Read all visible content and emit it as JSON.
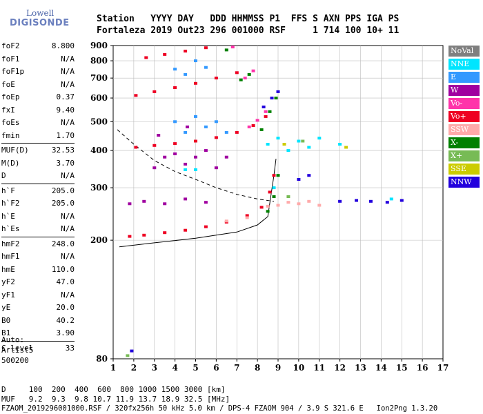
{
  "logo": {
    "brand": "Lowell",
    "name": "DIGISONDE"
  },
  "header": {
    "labels": "Station   YYYY DAY   DDD HHMMSS P1  FFS S AXN PPS IGA PS",
    "values": "Fortaleza 2019 Out23 296 001000 RSF     1 714 100 10+ 11"
  },
  "params": {
    "group1": [
      {
        "name": "foF2",
        "value": "8.800"
      },
      {
        "name": "foF1",
        "value": "N/A"
      },
      {
        "name": "foF1p",
        "value": "N/A"
      },
      {
        "name": "foE",
        "value": "N/A"
      },
      {
        "name": "foEp",
        "value": "0.37"
      },
      {
        "name": "fxI",
        "value": "9.40"
      },
      {
        "name": "foEs",
        "value": "N/A"
      },
      {
        "name": "fmin",
        "value": "1.70"
      }
    ],
    "group2": [
      {
        "name": "MUF(D)",
        "value": "32.53"
      },
      {
        "name": "M(D)",
        "value": "3.70"
      },
      {
        "name": "D",
        "value": "N/A"
      }
    ],
    "group3": [
      {
        "name": "h`F",
        "value": "205.0"
      },
      {
        "name": "h`F2",
        "value": "205.0"
      },
      {
        "name": "h`E",
        "value": "N/A"
      },
      {
        "name": "h`Es",
        "value": "N/A"
      }
    ],
    "group4": [
      {
        "name": "hmF2",
        "value": "248.0"
      },
      {
        "name": "hmF1",
        "value": "N/A"
      },
      {
        "name": "hmE",
        "value": "110.0"
      },
      {
        "name": "yF2",
        "value": "47.0"
      },
      {
        "name": "yF1",
        "value": "N/A"
      },
      {
        "name": "yE",
        "value": "20.0"
      },
      {
        "name": "B0",
        "value": "40.2"
      },
      {
        "name": "B1",
        "value": "3.90"
      }
    ],
    "group5": [
      {
        "name": "C-level",
        "value": "33"
      }
    ]
  },
  "auto": {
    "line1": "Auto:",
    "line2": "Artist5",
    "line3": "500200"
  },
  "footer": {
    "d_line": "D     100  200  400  600  800 1000 1500 3000 [km]",
    "muf_line": "MUF   9.2  9.3  9.8 10.7 11.9 13.7 18.9 32.5 [MHz]",
    "file_line": "FZAOM_2019296001000.RSF / 320fx256h 50 kHz 5.0 km / DPS-4 FZAOM 904 / 3.9 S 321.6 E   Ion2Png 1.3.20"
  },
  "legend": [
    {
      "label": "NoVal",
      "color": "#7f7f7f"
    },
    {
      "label": "NNE",
      "color": "#00e5ff"
    },
    {
      "label": "E",
      "color": "#3399ff"
    },
    {
      "label": "W",
      "color": "#a000a0"
    },
    {
      "label": "Vo-",
      "color": "#ff33aa"
    },
    {
      "label": "Vo+",
      "color": "#ee0022"
    },
    {
      "label": "SSW",
      "color": "#ffaaaa"
    },
    {
      "label": "X-",
      "color": "#008000"
    },
    {
      "label": "X+",
      "color": "#77bb55"
    },
    {
      "label": "SSE",
      "color": "#cccc00"
    },
    {
      "label": "NNW",
      "color": "#2200dd"
    }
  ],
  "chart_data": {
    "type": "scatter",
    "xlim": [
      1,
      17
    ],
    "ylim": [
      80,
      900
    ],
    "y_scale": "log",
    "x_ticks": [
      "1",
      "2",
      "3",
      "4",
      "5",
      "6",
      "7",
      "8",
      "9",
      "10",
      "11",
      "12",
      "13",
      "14",
      "15",
      "16",
      "17"
    ],
    "y_ticks": [
      "80",
      "200",
      "300",
      "400",
      "500",
      "600",
      "700",
      "800",
      "900"
    ],
    "grid": true,
    "series": [
      {
        "name": "Vo+",
        "color": "#ee0022",
        "points": [
          [
            1.8,
            206
          ],
          [
            2.5,
            208
          ],
          [
            3.5,
            212
          ],
          [
            4.5,
            216
          ],
          [
            5.5,
            222
          ],
          [
            6.5,
            230
          ],
          [
            7.5,
            242
          ],
          [
            8.2,
            258
          ],
          [
            8.6,
            290
          ],
          [
            8.8,
            330
          ],
          [
            2.1,
            410
          ],
          [
            3,
            416
          ],
          [
            4,
            422
          ],
          [
            5,
            430
          ],
          [
            6,
            442
          ],
          [
            7,
            460
          ],
          [
            7.8,
            485
          ],
          [
            8.4,
            520
          ],
          [
            2.1,
            612
          ],
          [
            3,
            630
          ],
          [
            4,
            650
          ],
          [
            5,
            672
          ],
          [
            6,
            700
          ],
          [
            7,
            730
          ],
          [
            2.6,
            820
          ],
          [
            3.5,
            840
          ],
          [
            4.5,
            862
          ],
          [
            5.5,
            885
          ]
        ]
      },
      {
        "name": "Vo-",
        "color": "#ff33aa",
        "points": [
          [
            7.6,
            480
          ],
          [
            8,
            505
          ],
          [
            8.4,
            540
          ],
          [
            7.4,
            700
          ],
          [
            7.8,
            740
          ],
          [
            6.8,
            890
          ]
        ]
      },
      {
        "name": "X-",
        "color": "#008000",
        "points": [
          [
            8.5,
            250
          ],
          [
            8.8,
            280
          ],
          [
            9,
            330
          ],
          [
            8.2,
            470
          ],
          [
            8.6,
            540
          ],
          [
            8.9,
            600
          ],
          [
            7.2,
            690
          ],
          [
            7.6,
            720
          ],
          [
            6.5,
            870
          ]
        ]
      },
      {
        "name": "W",
        "color": "#a000a0",
        "points": [
          [
            1.8,
            265
          ],
          [
            2.5,
            270
          ],
          [
            3.5,
            265
          ],
          [
            4.5,
            275
          ],
          [
            5.5,
            268
          ],
          [
            3,
            350
          ],
          [
            3.5,
            380
          ],
          [
            4,
            390
          ],
          [
            4.5,
            360
          ],
          [
            5,
            380
          ],
          [
            5.5,
            400
          ],
          [
            6,
            350
          ],
          [
            3.2,
            450
          ],
          [
            4.6,
            480
          ],
          [
            6.5,
            380
          ]
        ]
      },
      {
        "name": "NNE",
        "color": "#00e5ff",
        "points": [
          [
            8.5,
            420
          ],
          [
            9,
            440
          ],
          [
            9.5,
            400
          ],
          [
            10,
            430
          ],
          [
            10.5,
            410
          ],
          [
            11,
            440
          ],
          [
            8.8,
            300
          ],
          [
            14.5,
            275
          ],
          [
            12,
            420
          ],
          [
            4.5,
            345
          ],
          [
            5,
            345
          ]
        ]
      },
      {
        "name": "E",
        "color": "#3399ff",
        "points": [
          [
            4,
            500
          ],
          [
            4.5,
            460
          ],
          [
            5,
            520
          ],
          [
            5.5,
            480
          ],
          [
            6,
            500
          ],
          [
            6.5,
            460
          ],
          [
            4,
            750
          ],
          [
            4.5,
            720
          ],
          [
            5,
            800
          ],
          [
            5.5,
            760
          ]
        ]
      },
      {
        "name": "SSW",
        "color": "#ffaaaa",
        "points": [
          [
            6.5,
            232
          ],
          [
            7.5,
            238
          ],
          [
            8.5,
            260
          ],
          [
            9,
            262
          ],
          [
            9.5,
            268
          ],
          [
            10,
            265
          ],
          [
            10.5,
            270
          ],
          [
            11,
            262
          ]
        ]
      },
      {
        "name": "NNW",
        "color": "#2200dd",
        "points": [
          [
            12,
            270
          ],
          [
            12.8,
            272
          ],
          [
            13.5,
            270
          ],
          [
            14.3,
            268
          ],
          [
            15,
            272
          ],
          [
            10,
            320
          ],
          [
            10.5,
            330
          ],
          [
            8.3,
            560
          ],
          [
            8.7,
            600
          ],
          [
            9,
            630
          ],
          [
            1.9,
            85
          ]
        ]
      },
      {
        "name": "X+",
        "color": "#77bb55",
        "points": [
          [
            1.7,
            82
          ],
          [
            9.5,
            280
          ],
          [
            10.2,
            430
          ]
        ]
      },
      {
        "name": "SSE",
        "color": "#cccc00",
        "points": [
          [
            9.3,
            420
          ],
          [
            12.3,
            410
          ]
        ]
      }
    ],
    "profile_curve": [
      [
        1.3,
        190
      ],
      [
        3,
        196
      ],
      [
        5,
        203
      ],
      [
        7,
        213
      ],
      [
        8,
        225
      ],
      [
        8.5,
        240
      ],
      [
        8.8,
        330
      ],
      [
        8.9,
        375
      ]
    ],
    "model_curve": [
      [
        1.2,
        470
      ],
      [
        2,
        420
      ],
      [
        3,
        370
      ],
      [
        4,
        340
      ],
      [
        5,
        320
      ],
      [
        6,
        300
      ],
      [
        7,
        285
      ],
      [
        8,
        275
      ],
      [
        8.8,
        270
      ]
    ]
  }
}
